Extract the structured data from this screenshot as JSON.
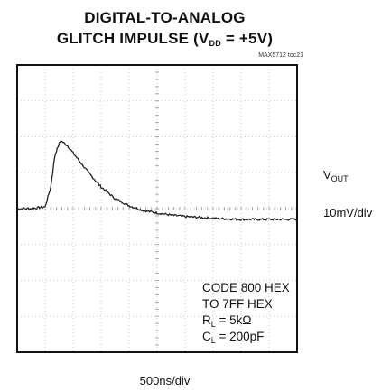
{
  "chart_data": {
    "type": "line",
    "title_line1": "DIGITAL-TO-ANALOG",
    "title_line2_prefix": "GLITCH IMPULSE (V",
    "title_line2_sub": "DD",
    "title_line2_suffix": " = +5V)",
    "figure_tag": "MAX5712 toc21",
    "channel_label_main": "V",
    "channel_label_sub": "OUT",
    "vertical_scale": "10mV/div",
    "horizontal_scale": "500ns/div",
    "annotations": {
      "line1": "CODE 800 HEX",
      "line2": "TO 7FF HEX",
      "rl_main": "R",
      "rl_sub": "L",
      "rl_value": " = 5kΩ",
      "cl_main": "C",
      "cl_sub": "L",
      "cl_value": " = 200pF"
    },
    "grid": true,
    "divisions": {
      "x": 10,
      "y": 8
    },
    "xlim": [
      0,
      10
    ],
    "ylim": [
      -4,
      4
    ],
    "trace": {
      "x": [
        0,
        0.5,
        1.0,
        1.2,
        1.35,
        1.55,
        1.8,
        2.1,
        2.5,
        3.0,
        3.5,
        4.0,
        4.5,
        5.0,
        5.5,
        6.0,
        7.0,
        8.0,
        9.0,
        10.0
      ],
      "y": [
        0,
        0,
        0.05,
        0.6,
        1.5,
        1.9,
        1.75,
        1.45,
        1.05,
        0.6,
        0.28,
        0.08,
        -0.05,
        -0.12,
        -0.18,
        -0.22,
        -0.27,
        -0.3,
        -0.3,
        -0.3
      ]
    }
  }
}
